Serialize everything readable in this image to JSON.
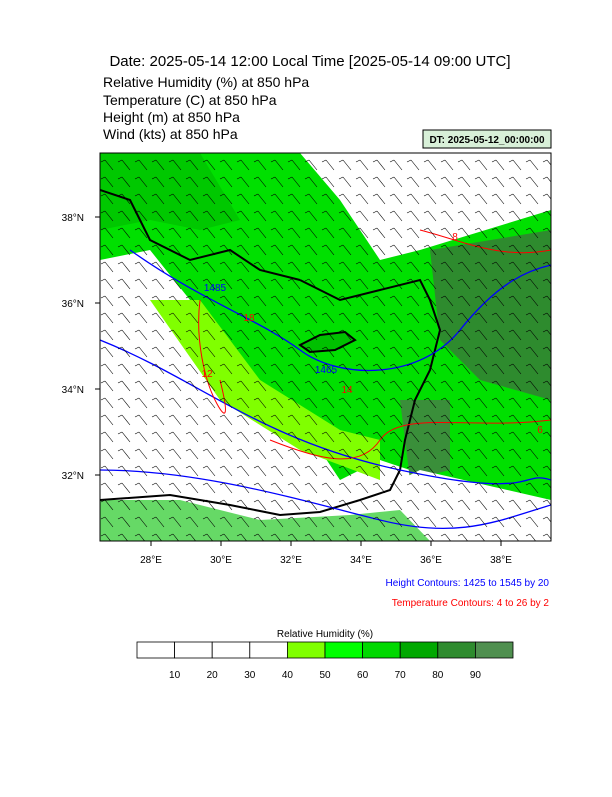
{
  "header": {
    "title": "Date: 2025-05-14  12:00 Local Time [2025-05-14  09:00 UTC]",
    "fields": [
      "Relative Humidity   (%)     at   850 hPa",
      "Temperature   (C)     at   850 hPa",
      "Height   (m)     at   850 hPa",
      "Wind   (kts)     at   850 hPa"
    ],
    "init_time": "DT: 2025-05-12_00:00:00"
  },
  "map": {
    "lon_labels": [
      "28°E",
      "30°E",
      "32°E",
      "34°E",
      "36°E",
      "38°E"
    ],
    "lat_labels": [
      "38°N",
      "36°N",
      "34°N",
      "32°N"
    ],
    "height_labels": [
      "1485",
      "1465"
    ],
    "temperature_labels": [
      "18",
      "12",
      "14",
      "8",
      "6"
    ]
  },
  "notes": {
    "height": "Height Contours: 1425 to 1545 by 20",
    "temperature": "Temperature Contours: 4 to 26 by 2"
  },
  "colorbar": {
    "title": "Relative Humidity  (%)",
    "labels": [
      "10",
      "20",
      "30",
      "40",
      "50",
      "60",
      "70",
      "80",
      "90"
    ]
  }
}
